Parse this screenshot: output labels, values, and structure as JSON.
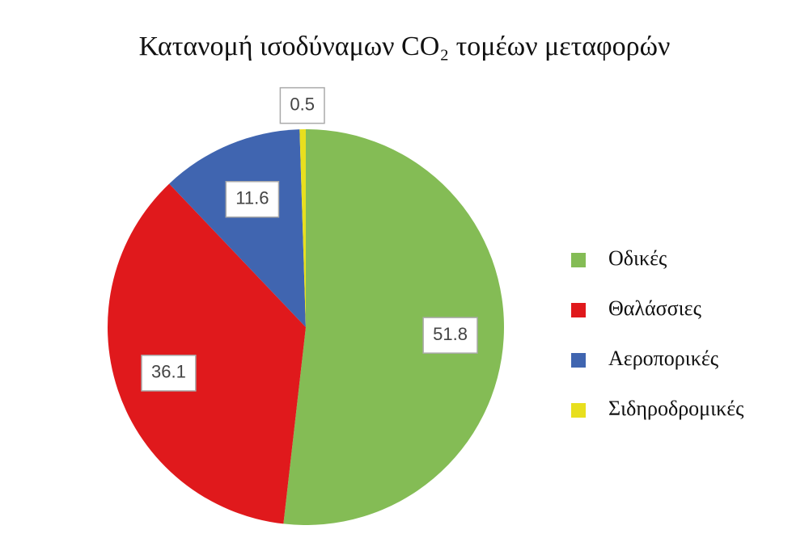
{
  "chart_data": {
    "type": "pie",
    "title": "Κατανομή ισοδύναμων CO₂ τομέων μεταφορών",
    "categories": [
      "Οδικές",
      "Θαλάσσιες",
      "Αεροπορικές",
      "Σιδηροδρομικές"
    ],
    "values": [
      51.8,
      36.1,
      11.6,
      0.5
    ],
    "colors": [
      "#84bc55",
      "#e0191c",
      "#4065b0",
      "#e8df1e"
    ],
    "legend": "right"
  }
}
